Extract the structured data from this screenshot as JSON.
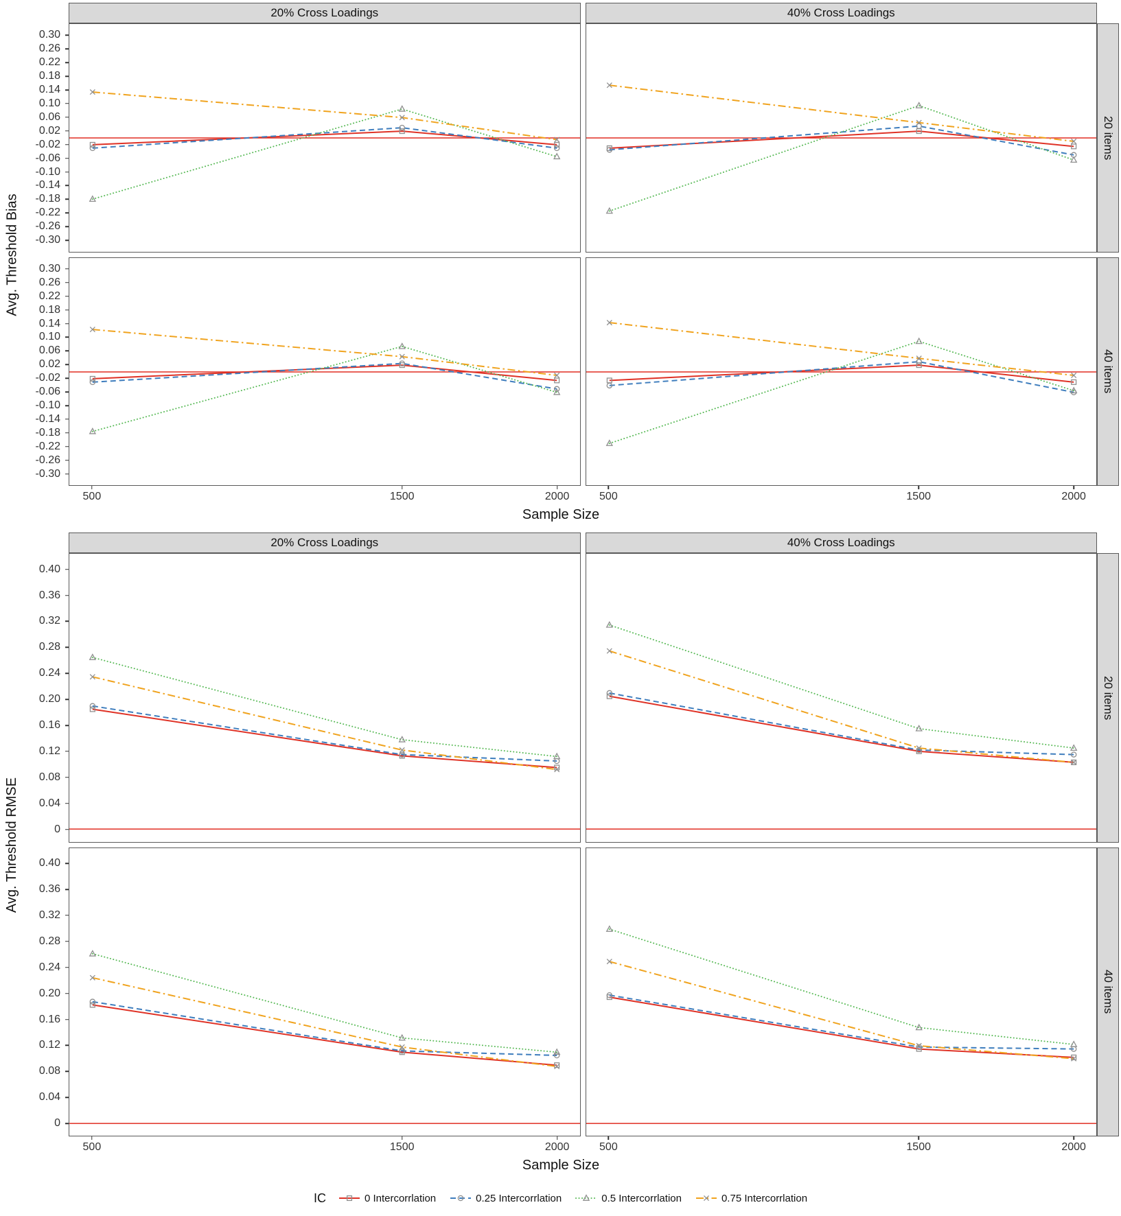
{
  "chart_data": [
    {
      "type": "line",
      "name": "avg-threshold-bias",
      "ylabel": "Avg. Threshold Bias",
      "xlabel": "Sample Size",
      "col_facets": [
        "20% Cross Loadings",
        "40% Cross Loadings"
      ],
      "row_facets": [
        "20 items",
        "40 items"
      ],
      "x": [
        500,
        1500,
        2000
      ],
      "xtick_labels": [
        "500",
        "1500",
        "2000"
      ],
      "xlim": [
        425,
        2075
      ],
      "ylim": [
        -0.335,
        0.335
      ],
      "yticks": [
        0.3,
        0.26,
        0.22,
        0.18,
        0.14,
        0.1,
        0.06,
        0.02,
        -0.02,
        -0.06,
        -0.1,
        -0.14,
        -0.18,
        -0.22,
        -0.26,
        -0.3
      ],
      "ytick_labels": [
        "0.30",
        "0.26",
        "0.22",
        "0.18",
        "0.14",
        "0.10",
        "0.06",
        "0.02",
        "-0.02",
        "-0.06",
        "-0.10",
        "-0.14",
        "-0.18",
        "-0.22",
        "-0.26",
        "-0.30"
      ],
      "reference_y": 0,
      "grid": false,
      "panels": [
        {
          "col_facet": "20% Cross Loadings",
          "row_facet": "20 items",
          "values": [
            [
              -0.02,
              0.02,
              -0.02
            ],
            [
              -0.03,
              0.03,
              -0.03
            ],
            [
              -0.18,
              0.085,
              -0.055
            ],
            [
              0.135,
              0.06,
              -0.005
            ]
          ]
        },
        {
          "col_facet": "40% Cross Loadings",
          "row_facet": "20 items",
          "values": [
            [
              -0.03,
              0.02,
              -0.025
            ],
            [
              -0.035,
              0.035,
              -0.05
            ],
            [
              -0.215,
              0.095,
              -0.065
            ],
            [
              0.155,
              0.045,
              -0.01
            ]
          ]
        },
        {
          "col_facet": "20% Cross Loadings",
          "row_facet": "40 items",
          "values": [
            [
              -0.02,
              0.02,
              -0.025
            ],
            [
              -0.03,
              0.025,
              -0.05
            ],
            [
              -0.175,
              0.075,
              -0.06
            ],
            [
              0.125,
              0.045,
              -0.01
            ]
          ]
        },
        {
          "col_facet": "40% Cross Loadings",
          "row_facet": "40 items",
          "values": [
            [
              -0.025,
              0.02,
              -0.03
            ],
            [
              -0.04,
              0.03,
              -0.06
            ],
            [
              -0.21,
              0.09,
              -0.055
            ],
            [
              0.145,
              0.04,
              -0.01
            ]
          ]
        }
      ]
    },
    {
      "type": "line",
      "name": "avg-threshold-rmse",
      "ylabel": "Avg. Threshold RMSE",
      "xlabel": "Sample Size",
      "col_facets": [
        "20% Cross Loadings",
        "40% Cross Loadings"
      ],
      "row_facets": [
        "20 items",
        "40 items"
      ],
      "x": [
        500,
        1500,
        2000
      ],
      "xtick_labels": [
        "500",
        "1500",
        "2000"
      ],
      "xlim": [
        425,
        2075
      ],
      "ylim": [
        -0.02,
        0.425
      ],
      "yticks": [
        0.4,
        0.36,
        0.32,
        0.28,
        0.24,
        0.2,
        0.16,
        0.12,
        0.08,
        0.04,
        0
      ],
      "ytick_labels": [
        "0.40",
        "0.36",
        "0.32",
        "0.28",
        "0.24",
        "0.20",
        "0.16",
        "0.12",
        "0.08",
        "0.04",
        "0"
      ],
      "reference_y": 0,
      "grid": false,
      "panels": [
        {
          "col_facet": "20% Cross Loadings",
          "row_facet": "20 items",
          "values": [
            [
              0.185,
              0.113,
              0.095
            ],
            [
              0.19,
              0.115,
              0.105
            ],
            [
              0.265,
              0.138,
              0.112
            ],
            [
              0.235,
              0.122,
              0.092
            ]
          ]
        },
        {
          "col_facet": "40% Cross Loadings",
          "row_facet": "20 items",
          "values": [
            [
              0.205,
              0.12,
              0.103
            ],
            [
              0.21,
              0.122,
              0.115
            ],
            [
              0.315,
              0.155,
              0.125
            ],
            [
              0.275,
              0.125,
              0.103
            ]
          ]
        },
        {
          "col_facet": "20% Cross Loadings",
          "row_facet": "40 items",
          "values": [
            [
              0.183,
              0.11,
              0.09
            ],
            [
              0.188,
              0.112,
              0.105
            ],
            [
              0.262,
              0.132,
              0.11
            ],
            [
              0.225,
              0.118,
              0.088
            ]
          ]
        },
        {
          "col_facet": "40% Cross Loadings",
          "row_facet": "40 items",
          "values": [
            [
              0.195,
              0.115,
              0.102
            ],
            [
              0.198,
              0.118,
              0.115
            ],
            [
              0.3,
              0.148,
              0.122
            ],
            [
              0.25,
              0.12,
              0.1
            ]
          ]
        }
      ]
    }
  ],
  "series": [
    {
      "label": "0 Intercorrlation",
      "color": "#df3226",
      "dash": "solid",
      "marker": "square"
    },
    {
      "label": "0.25 Intercorrlation",
      "color": "#3e7dbd",
      "dash": "dashed",
      "marker": "circle"
    },
    {
      "label": "0.5 Intercorrlation",
      "color": "#59ba57",
      "dash": "dotted",
      "marker": "triangle"
    },
    {
      "label": "0.75 Intercorrlation",
      "color": "#f0a31e",
      "dash": "dashdot",
      "marker": "x"
    }
  ],
  "legend": {
    "title": "IC"
  },
  "style": {
    "strip_bg": "#d9d9d9",
    "border": "#595959",
    "marker_color": "#8f8f8f",
    "reference_color": "#e02d22",
    "tick_color": "#333333"
  }
}
